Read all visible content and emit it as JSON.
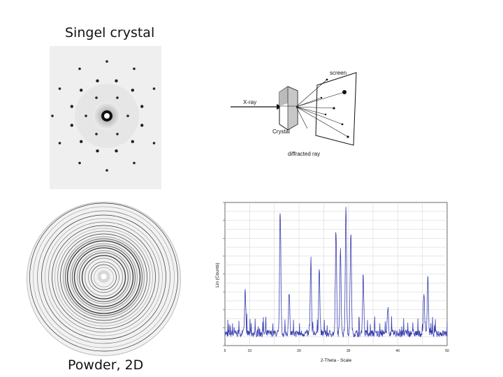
{
  "titles": {
    "single": "Singel crystal",
    "powder": "Powder, 2D"
  },
  "diagram": {
    "xray": "X-ray",
    "crystal": "Crystal",
    "screen": "screen",
    "diffracted": "diffracted ray"
  },
  "chart_data": {
    "type": "line",
    "title": "",
    "xlabel": "2-Theta - Scale",
    "ylabel": "Lin (Counts)",
    "x_ticks": [
      "5",
      "10",
      "20",
      "30",
      "40",
      "50"
    ],
    "grid": true,
    "series_color": "#3a3fb0",
    "peaks": [
      {
        "x": 9.1,
        "y": 0.3
      },
      {
        "x": 16.2,
        "y": 0.86
      },
      {
        "x": 18.0,
        "y": 0.3
      },
      {
        "x": 22.4,
        "y": 0.52
      },
      {
        "x": 24.1,
        "y": 0.46
      },
      {
        "x": 27.5,
        "y": 0.69
      },
      {
        "x": 28.4,
        "y": 0.6
      },
      {
        "x": 29.5,
        "y": 0.91
      },
      {
        "x": 30.5,
        "y": 0.72
      },
      {
        "x": 33.0,
        "y": 0.42
      },
      {
        "x": 38.0,
        "y": 0.18
      },
      {
        "x": 45.3,
        "y": 0.28
      },
      {
        "x": 46.1,
        "y": 0.39
      }
    ]
  }
}
